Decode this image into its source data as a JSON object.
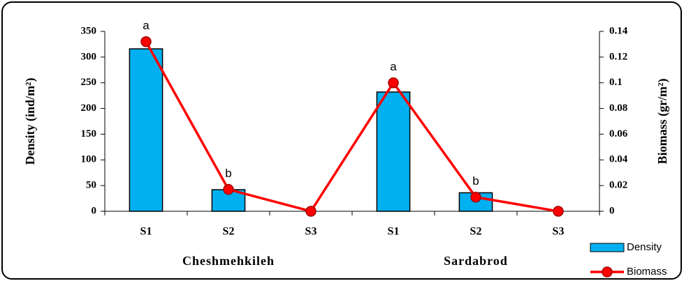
{
  "chart_data": {
    "type": "bar_line",
    "categories": [
      "S1",
      "S2",
      "S3",
      "S1",
      "S2",
      "S3"
    ],
    "groups": [
      "Cheshmehkileh",
      "Sardabrod"
    ],
    "annotations": [
      "a",
      "b",
      null,
      "a",
      "b",
      null
    ],
    "ylabel": "Density (ind/m²)",
    "y2label": "Biomass (gr/m²)",
    "ylim": [
      0,
      350
    ],
    "yticks": [
      0,
      50,
      100,
      150,
      200,
      250,
      300,
      350
    ],
    "y2lim": [
      0,
      0.14
    ],
    "y2ticks": [
      0,
      0.02,
      0.04,
      0.06,
      0.08,
      0.1,
      0.12,
      0.14
    ],
    "series": [
      {
        "name": "Density",
        "type": "bar",
        "color": "#00b0f0",
        "values": [
          316,
          42,
          0,
          232,
          36,
          0
        ]
      },
      {
        "name": "Biomass",
        "type": "line",
        "axis": "y2",
        "color": "#ff0000",
        "values": [
          0.132,
          0.017,
          0,
          0.1,
          0.011,
          0
        ]
      }
    ]
  }
}
